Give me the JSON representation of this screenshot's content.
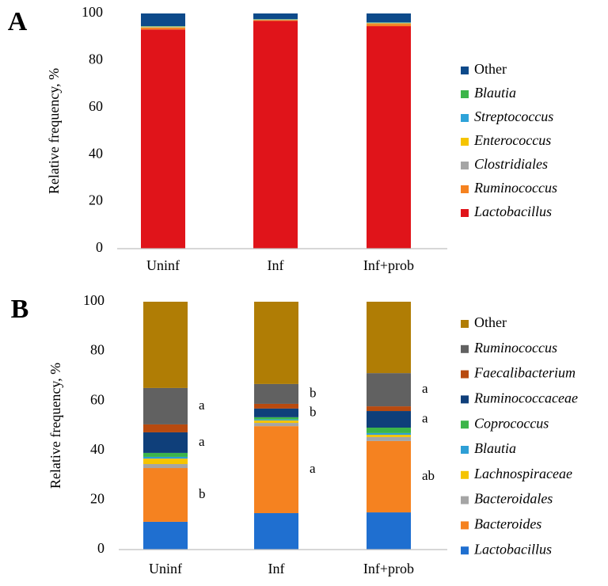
{
  "chart_data": [
    {
      "type": "stacked-bar",
      "label": "A",
      "ylabel": "Relative frequency, %",
      "categories": [
        "Uninf",
        "Inf",
        "Inf+prob"
      ],
      "ylim": [
        0,
        100
      ],
      "yticks": [
        0,
        20,
        40,
        60,
        80,
        100
      ],
      "series": [
        {
          "name": "Lactobacillus",
          "color": "#e0141a",
          "italic": true,
          "values": [
            93.2,
            96.8,
            94.6
          ]
        },
        {
          "name": "Ruminococcus",
          "color": "#f58220",
          "italic": true,
          "values": [
            0.8,
            0.4,
            1.0
          ]
        },
        {
          "name": "Clostridiales",
          "color": "#a5a5a5",
          "italic": true,
          "values": [
            0.2,
            0.1,
            0.2
          ]
        },
        {
          "name": "Enterococcus",
          "color": "#f5c400",
          "italic": true,
          "values": [
            0.2,
            0.1,
            0.2
          ]
        },
        {
          "name": "Streptococcus",
          "color": "#2ea3d9",
          "italic": true,
          "values": [
            0.1,
            0.1,
            0.1
          ]
        },
        {
          "name": "Blautia",
          "color": "#3cb54a",
          "italic": true,
          "values": [
            0.1,
            0.1,
            0.1
          ]
        },
        {
          "name": "Other",
          "color": "#0d4a8a",
          "italic": false,
          "values": [
            5.4,
            2.4,
            3.8
          ]
        }
      ]
    },
    {
      "type": "stacked-bar",
      "label": "B",
      "ylabel": "Relative frequency, %",
      "categories": [
        "Uninf",
        "Inf",
        "Inf+prob"
      ],
      "ylim": [
        0,
        100
      ],
      "yticks": [
        0,
        20,
        40,
        60,
        80,
        100
      ],
      "series": [
        {
          "name": "Lactobacillus",
          "color": "#1f6fd0",
          "italic": true,
          "values": [
            11.2,
            14.7,
            15.0
          ]
        },
        {
          "name": "Bacteroides",
          "color": "#f58220",
          "italic": true,
          "values": [
            21.7,
            35.1,
            28.8
          ]
        },
        {
          "name": "Bacteroidales",
          "color": "#a5a5a5",
          "italic": true,
          "values": [
            1.6,
            1.3,
            1.6
          ]
        },
        {
          "name": "Lachnospiraceae",
          "color": "#f5c400",
          "italic": true,
          "values": [
            2.2,
            1.0,
            0.9
          ]
        },
        {
          "name": "Blautia",
          "color": "#2e9fd6",
          "italic": true,
          "values": [
            0.7,
            0.4,
            0.7
          ]
        },
        {
          "name": "Coprococcus",
          "color": "#3cb54a",
          "italic": true,
          "values": [
            1.6,
            0.9,
            2.2
          ]
        },
        {
          "name": "Ruminococcaceae",
          "color": "#0f3f7a",
          "italic": true,
          "values": [
            8.3,
            3.5,
            6.7
          ]
        },
        {
          "name": "Faecalibacterium",
          "color": "#b84a0f",
          "italic": true,
          "values": [
            3.2,
            1.9,
            1.9
          ]
        },
        {
          "name": "Ruminococcus",
          "color": "#616161",
          "italic": true,
          "values": [
            14.7,
            8.0,
            13.4
          ]
        },
        {
          "name": "Other",
          "color": "#b07d05",
          "italic": false,
          "values": [
            34.8,
            33.2,
            28.8
          ]
        }
      ],
      "annotated_series": [
        8,
        6,
        1
      ],
      "annotations": [
        [
          "a",
          "a",
          "b"
        ],
        [
          "b",
          "b",
          "a"
        ],
        [
          "a",
          "a",
          "ab"
        ]
      ]
    }
  ]
}
